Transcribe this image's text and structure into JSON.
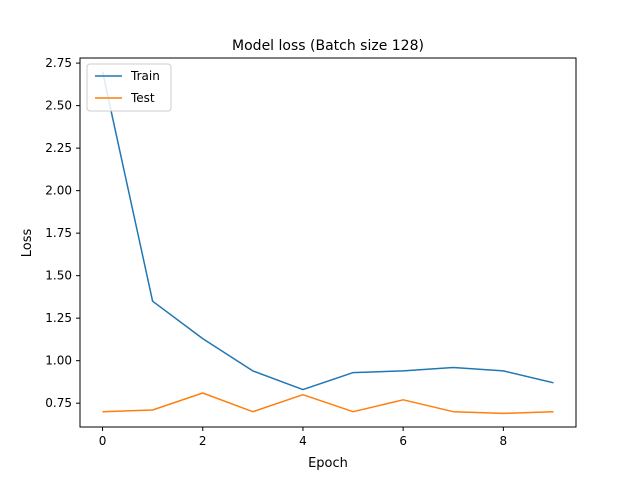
{
  "chart_data": {
    "type": "line",
    "title": "Model loss (Batch size 128)",
    "xlabel": "Epoch",
    "ylabel": "Loss",
    "x": [
      0,
      1,
      2,
      3,
      4,
      5,
      6,
      7,
      8,
      9
    ],
    "xlim": [
      -0.45,
      9.45
    ],
    "ylim": [
      0.61,
      2.78
    ],
    "xticks": [
      0,
      2,
      4,
      6,
      8
    ],
    "xtick_labels": [
      "0",
      "2",
      "4",
      "6",
      "8"
    ],
    "yticks": [
      0.75,
      1.0,
      1.25,
      1.5,
      1.75,
      2.0,
      2.25,
      2.5,
      2.75
    ],
    "ytick_labels": [
      "0.75",
      "1.00",
      "1.25",
      "1.50",
      "1.75",
      "2.00",
      "2.25",
      "2.50",
      "2.75"
    ],
    "grid": false,
    "legend_position": "top-left",
    "series": [
      {
        "name": "Train",
        "color": "#1f77b4",
        "values": [
          2.7,
          1.35,
          1.13,
          0.94,
          0.83,
          0.93,
          0.94,
          0.96,
          0.94,
          0.87
        ]
      },
      {
        "name": "Test",
        "color": "#ff7f0e",
        "values": [
          0.7,
          0.71,
          0.81,
          0.7,
          0.8,
          0.7,
          0.77,
          0.7,
          0.69,
          0.7
        ]
      }
    ]
  }
}
